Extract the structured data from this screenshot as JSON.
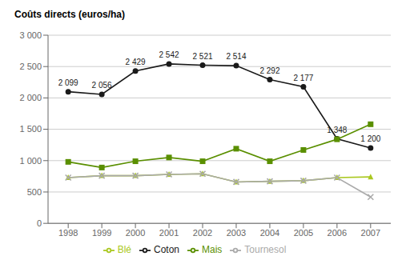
{
  "chart_data": {
    "type": "line",
    "y_label": "Coûts directs (euros/ha)",
    "x": [
      1998,
      1999,
      2000,
      2001,
      2002,
      2003,
      2004,
      2005,
      2006,
      2007
    ],
    "xlim": [
      1997.4,
      2007.6
    ],
    "xticks": [
      1998,
      1999,
      2000,
      2001,
      2002,
      2003,
      2004,
      2005,
      2006,
      2007
    ],
    "ylim": [
      0,
      3000
    ],
    "yticks": [
      0,
      500,
      {
        "value": 1000,
        "label": "1 000"
      },
      {
        "value": 1500,
        "label": "1 500"
      },
      {
        "value": 2000,
        "label": "2 000"
      },
      {
        "value": 2500,
        "label": "2 500"
      },
      {
        "value": 3000,
        "label": "3 000"
      }
    ],
    "grid": true,
    "legend": "bottom",
    "series": [
      {
        "name": "Coton",
        "color": "#1a1a1a",
        "marker": "circle",
        "values": [
          2099,
          2056,
          2429,
          2542,
          2521,
          2514,
          2292,
          2177,
          1348,
          1200
        ],
        "data_labels": true,
        "value_labels": [
          "2 099",
          "2 056",
          "2 429",
          "2 542",
          "2 521",
          "2 514",
          "2 292",
          "2 177",
          "1 348",
          "1 200"
        ]
      },
      {
        "name": "Mais",
        "color": "#5a8f00",
        "marker": "square",
        "values": [
          980,
          890,
          990,
          1050,
          990,
          1190,
          990,
          1170,
          1340,
          1580
        ]
      },
      {
        "name": "Blé",
        "color": "#aac820",
        "marker": "triangle",
        "values": [
          730,
          760,
          760,
          780,
          790,
          660,
          670,
          680,
          730,
          740
        ]
      },
      {
        "name": "Tournesol",
        "color": "#aaaaaa",
        "marker": "cross",
        "values": [
          730,
          760,
          760,
          780,
          790,
          660,
          670,
          680,
          730,
          420
        ]
      }
    ]
  }
}
